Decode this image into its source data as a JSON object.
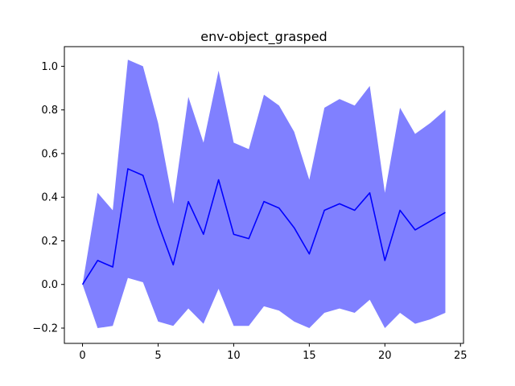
{
  "chart_data": {
    "type": "line",
    "title": "env-object_grasped",
    "xlabel": "",
    "ylabel": "",
    "xlim": [
      -1.2,
      25.2
    ],
    "ylim": [
      -0.27,
      1.09
    ],
    "xticks": [
      0,
      5,
      10,
      15,
      20,
      25
    ],
    "yticks": [
      -0.2,
      0.0,
      0.2,
      0.4,
      0.6,
      0.8,
      1.0
    ],
    "grid": false,
    "legend": "none",
    "colors": {
      "line": "#0000ff",
      "band": "#8080ff"
    },
    "series": [
      {
        "x": [
          0,
          1,
          2,
          3,
          4,
          5,
          6,
          7,
          8,
          9,
          10,
          11,
          12,
          13,
          14,
          15,
          16,
          17,
          18,
          19,
          20,
          21,
          22,
          23,
          24
        ],
        "mean": [
          0.0,
          0.11,
          0.08,
          0.53,
          0.5,
          0.28,
          0.09,
          0.38,
          0.23,
          0.48,
          0.23,
          0.21,
          0.38,
          0.35,
          0.26,
          0.14,
          0.34,
          0.37,
          0.34,
          0.42,
          0.11,
          0.34,
          0.25,
          0.29,
          0.33
        ],
        "upper": [
          0.0,
          0.42,
          0.34,
          1.03,
          1.0,
          0.74,
          0.37,
          0.86,
          0.65,
          0.98,
          0.65,
          0.62,
          0.87,
          0.82,
          0.7,
          0.48,
          0.81,
          0.85,
          0.82,
          0.91,
          0.42,
          0.81,
          0.69,
          0.74,
          0.8
        ],
        "lower": [
          0.0,
          -0.2,
          -0.19,
          0.03,
          0.01,
          -0.17,
          -0.19,
          -0.11,
          -0.18,
          -0.02,
          -0.19,
          -0.19,
          -0.1,
          -0.12,
          -0.17,
          -0.2,
          -0.13,
          -0.11,
          -0.13,
          -0.07,
          -0.2,
          -0.13,
          -0.18,
          -0.16,
          -0.13
        ]
      }
    ]
  }
}
